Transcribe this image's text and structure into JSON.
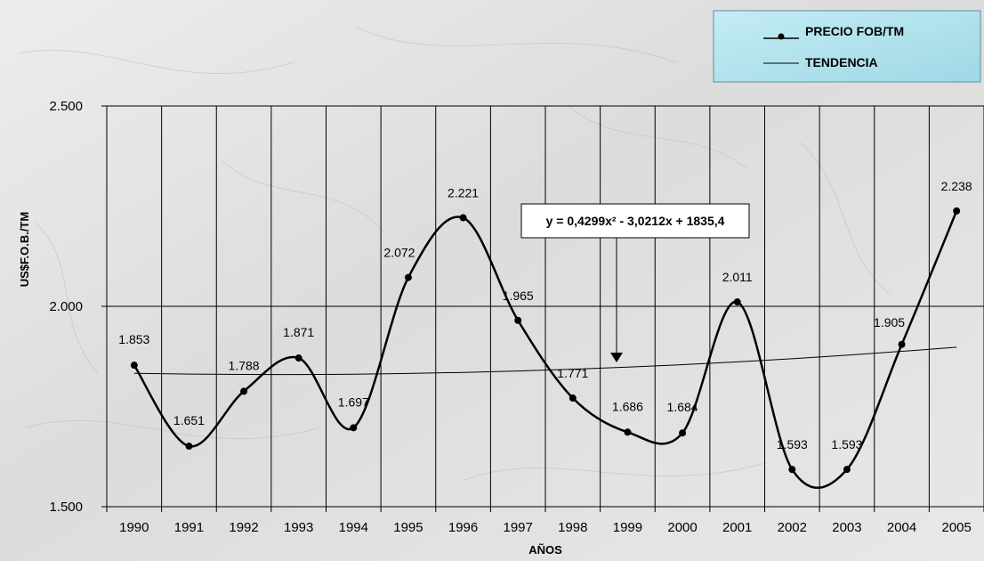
{
  "chart_data": {
    "type": "line",
    "x": [
      "1990",
      "1991",
      "1992",
      "1993",
      "1994",
      "1995",
      "1996",
      "1997",
      "1998",
      "1999",
      "2000",
      "2001",
      "2002",
      "2003",
      "2004",
      "2005"
    ],
    "series": [
      {
        "name": "PRECIO FOB/TM",
        "values": [
          1853,
          1651,
          1788,
          1871,
          1697,
          2072,
          2221,
          1965,
          1771,
          1686,
          1684,
          2011,
          1593,
          1593,
          1905,
          2238
        ],
        "color": "#000000",
        "marker": "dot"
      },
      {
        "name": "TENDENCIA",
        "values": [
          1832.8,
          1830.9,
          1829.9,
          1829.8,
          1830.6,
          1832.4,
          1835.1,
          1838.6,
          1843.0,
          1848.2,
          1854.4,
          1861.4,
          1869.3,
          1878.1,
          1887.7,
          1898.1
        ],
        "color": "#000000",
        "marker": "none"
      }
    ],
    "data_labels": [
      "1.853",
      "1.651",
      "1.788",
      "1.871",
      "1.697",
      "2.072",
      "2.221",
      "1.965",
      "1.771",
      "1.686",
      "1.684",
      "2.011",
      "1.593",
      "1.593",
      "1.905",
      "2.238"
    ],
    "y_ticks": [
      "1.500",
      "2.000",
      "2.500"
    ],
    "ylim": [
      1500,
      2500
    ],
    "xlabel": "AÑOS",
    "ylabel": "US$F.O.B./TM",
    "equation": "y = 0,4299x² - 3,0212x + 1835,4",
    "legend_position": "top-right",
    "grid": true
  }
}
